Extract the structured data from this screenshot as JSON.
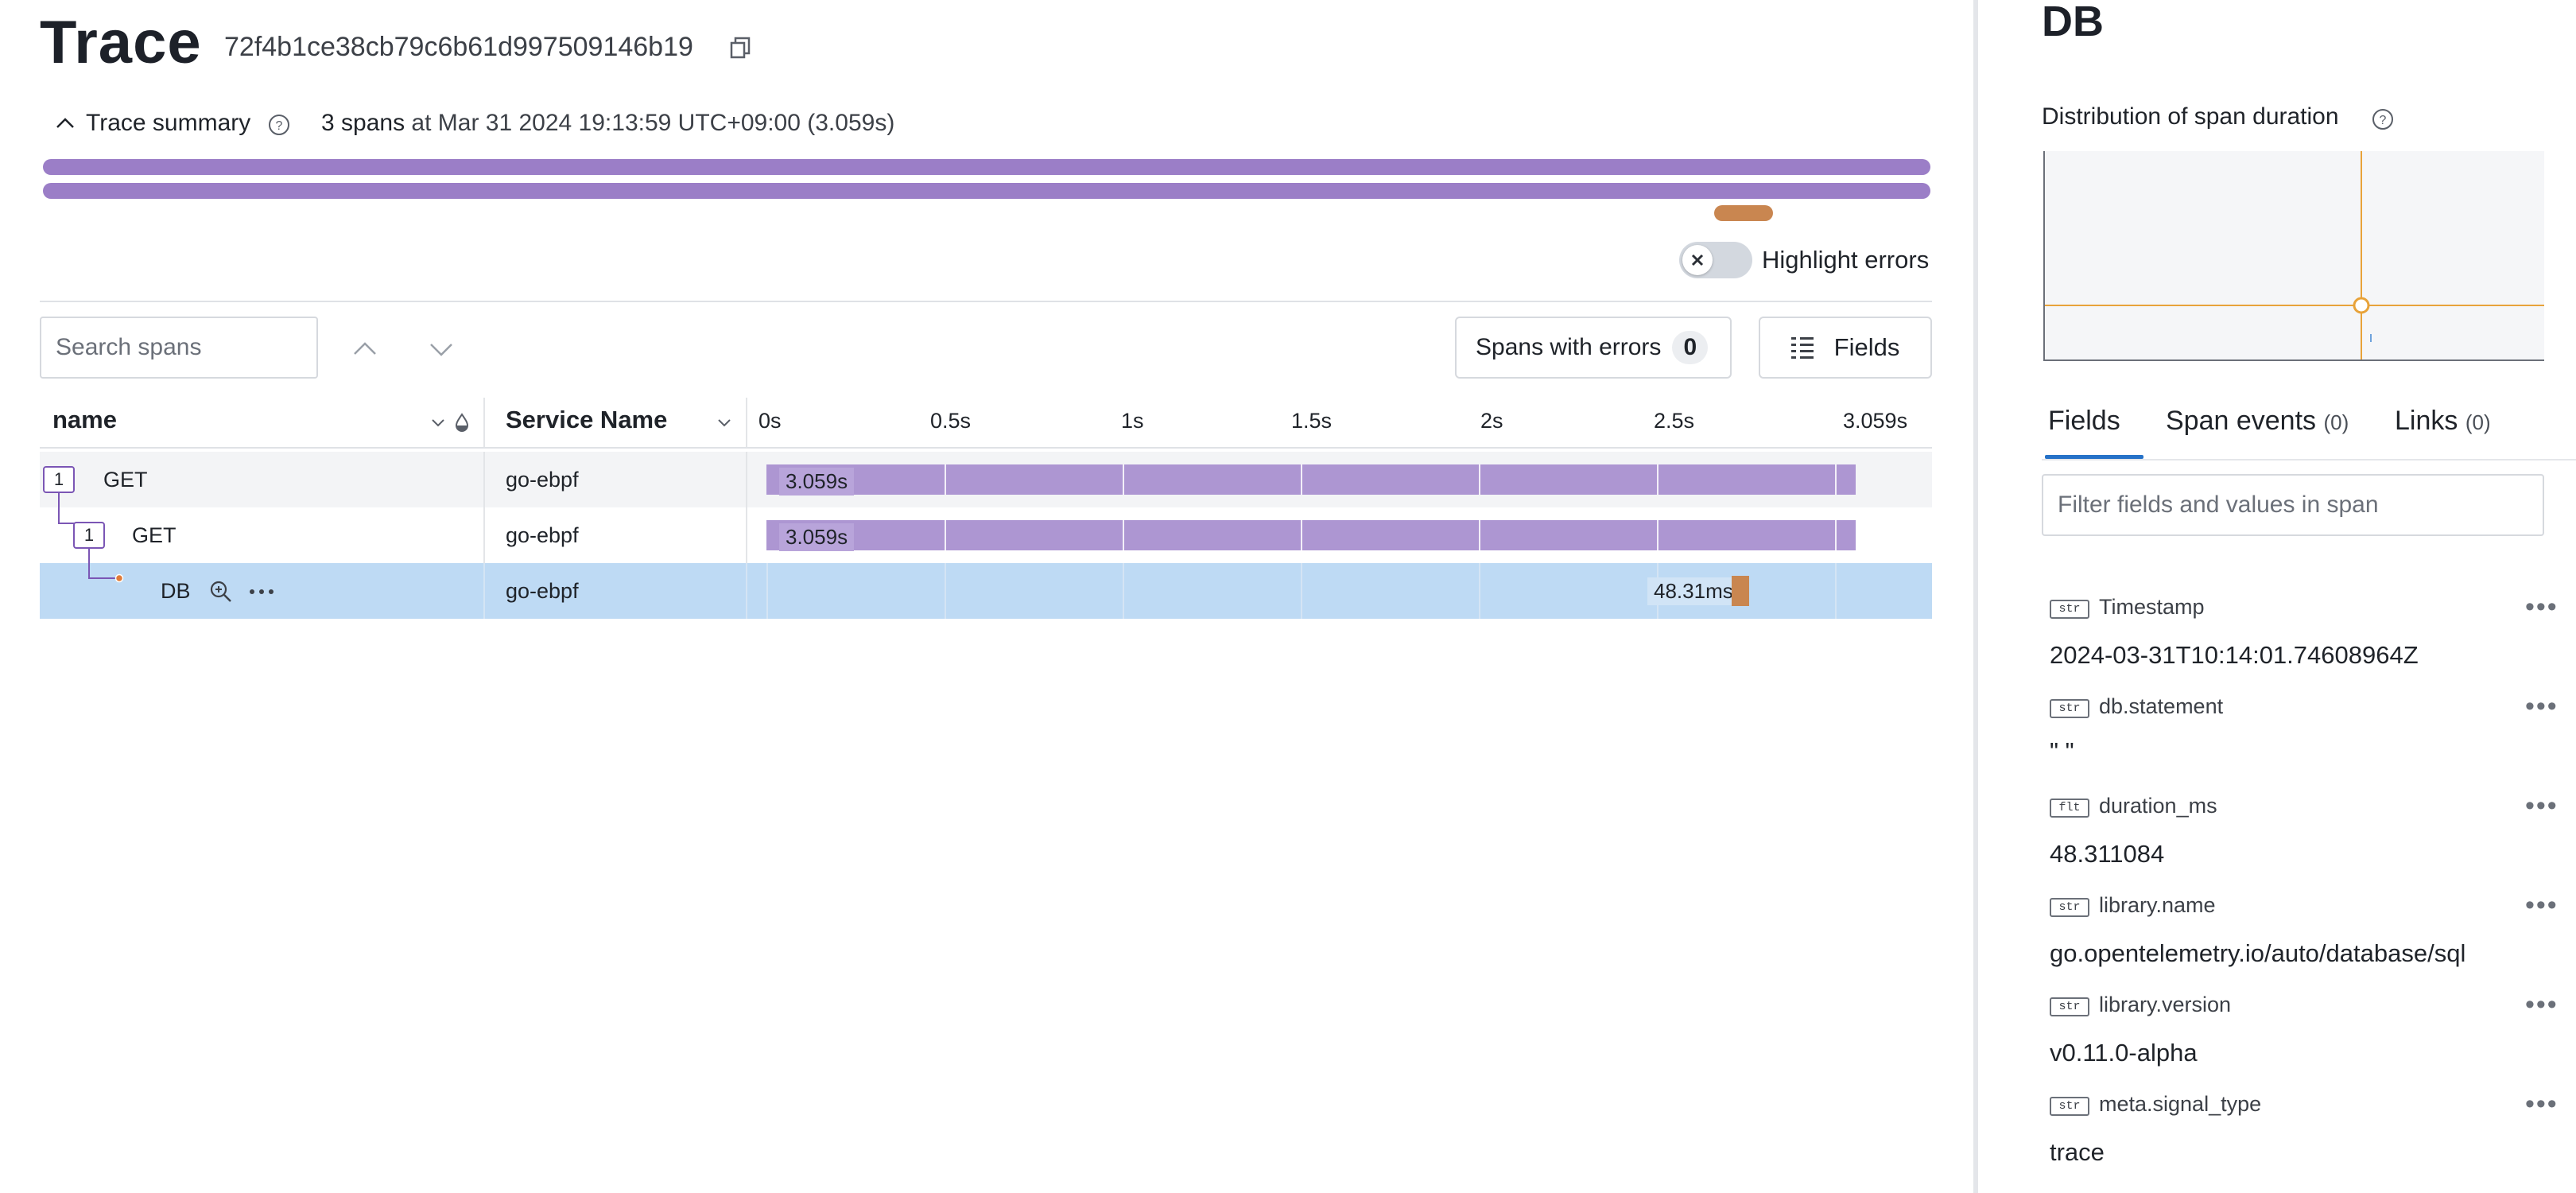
{
  "header": {
    "title": "Trace",
    "trace_id": "72f4b1ce38cb79c6b61d997509146b19"
  },
  "summary": {
    "toggle_label": "Trace summary",
    "span_count": "3 spans",
    "timestamp_text": "at Mar 31 2024 19:13:59 UTC+09:00 (3.059s)"
  },
  "toolbar": {
    "highlight_errors_label": "Highlight errors",
    "search_placeholder": "Search spans",
    "spans_with_errors_label": "Spans with errors",
    "spans_with_errors_count": "0",
    "fields_label": "Fields"
  },
  "table": {
    "columns": {
      "name": "name",
      "service": "Service Name"
    },
    "ticks": [
      "0s",
      "0.5s",
      "1s",
      "1.5s",
      "2s",
      "2.5s",
      "3.059s"
    ],
    "rows": [
      {
        "badge": "1",
        "name": "GET",
        "service": "go-ebpf",
        "duration": "3.059s",
        "start_s": 0.0,
        "duration_s": 3.059
      },
      {
        "badge": "1",
        "name": "GET",
        "service": "go-ebpf",
        "duration": "3.059s",
        "start_s": 0.0,
        "duration_s": 3.059
      },
      {
        "badge": "",
        "name": "DB",
        "service": "go-ebpf",
        "duration": "48.31ms",
        "start_s": 2.71,
        "duration_s": 0.048
      }
    ]
  },
  "colors": {
    "span_bar": "#ad96d2",
    "error_bar": "#c98650",
    "selected_row": "#bedaf4",
    "accent": "#2672c8"
  },
  "panel": {
    "title": "DB",
    "distribution_label": "Distribution of span duration",
    "tabs": [
      {
        "label": "Fields",
        "count": ""
      },
      {
        "label": "Span events",
        "count": "(0)"
      },
      {
        "label": "Links",
        "count": "(0)"
      }
    ],
    "filter_placeholder": "Filter fields and values in span",
    "fields": [
      {
        "type": "str",
        "name": "Timestamp",
        "value": "2024-03-31T10:14:01.74608964Z"
      },
      {
        "type": "str",
        "name": "db.statement",
        "value": "\" \""
      },
      {
        "type": "flt",
        "name": "duration_ms",
        "value": "48.311084"
      },
      {
        "type": "str",
        "name": "library.name",
        "value": "go.opentelemetry.io/auto/database/sql"
      },
      {
        "type": "str",
        "name": "library.version",
        "value": "v0.11.0-alpha"
      },
      {
        "type": "str",
        "name": "meta.signal_type",
        "value": "trace"
      }
    ]
  }
}
